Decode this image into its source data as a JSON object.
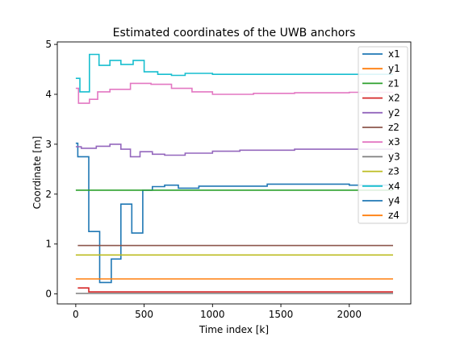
{
  "chart_data": {
    "type": "line",
    "title": "Estimated coordinates of the UWB anchors",
    "xlabel": "Time index [k]",
    "ylabel": "Coordinate [m]",
    "xlim": [
      -135,
      2450
    ],
    "ylim": [
      -0.2,
      5.05
    ],
    "xticks": [
      0,
      500,
      1000,
      1500,
      2000
    ],
    "yticks": [
      0,
      1,
      2,
      3,
      4,
      5
    ],
    "grid": false,
    "legend_position": "top-right",
    "series": [
      {
        "name": "x1",
        "color": "#1f77b4",
        "step": true,
        "x": [
          0,
          15,
          95,
          175,
          260,
          330,
          410,
          490,
          560,
          650,
          750,
          900,
          1400,
          1700,
          2000,
          2320
        ],
        "y": [
          3.02,
          2.75,
          1.25,
          0.23,
          0.7,
          1.8,
          1.22,
          2.08,
          2.15,
          2.18,
          2.12,
          2.16,
          2.2,
          2.2,
          2.18,
          2.18
        ]
      },
      {
        "name": "y1",
        "color": "#ff7f0e",
        "step": true,
        "x": [
          0,
          2320
        ],
        "y": [
          0.3,
          0.3
        ]
      },
      {
        "name": "z1",
        "color": "#2ca02c",
        "step": true,
        "x": [
          0,
          2320
        ],
        "y": [
          2.08,
          2.08
        ]
      },
      {
        "name": "x2",
        "color": "#d62728",
        "step": true,
        "x": [
          15,
          95,
          2320
        ],
        "y": [
          0.12,
          0.04,
          0.04
        ]
      },
      {
        "name": "y2",
        "color": "#9467bd",
        "step": true,
        "x": [
          0,
          40,
          150,
          250,
          330,
          400,
          470,
          560,
          650,
          800,
          1000,
          1200,
          1600,
          2000,
          2320
        ],
        "y": [
          2.95,
          2.92,
          2.96,
          3.0,
          2.9,
          2.75,
          2.85,
          2.8,
          2.78,
          2.82,
          2.86,
          2.88,
          2.9,
          2.9,
          2.9
        ]
      },
      {
        "name": "z2",
        "color": "#8c564b",
        "step": true,
        "x": [
          15,
          2320
        ],
        "y": [
          0.97,
          0.97
        ]
      },
      {
        "name": "x3",
        "color": "#e377c2",
        "step": true,
        "x": [
          0,
          20,
          100,
          160,
          250,
          400,
          550,
          700,
          850,
          1000,
          1300,
          1600,
          2000,
          2320
        ],
        "y": [
          4.12,
          3.82,
          3.9,
          4.05,
          4.1,
          4.22,
          4.2,
          4.12,
          4.05,
          4.0,
          4.02,
          4.03,
          4.04,
          4.04
        ]
      },
      {
        "name": "y3",
        "color": "#7f7f7f",
        "step": true,
        "x": [
          0,
          2320
        ],
        "y": [
          0.01,
          0.01
        ]
      },
      {
        "name": "z3",
        "color": "#bcbd22",
        "step": true,
        "x": [
          0,
          2320
        ],
        "y": [
          0.78,
          0.78
        ]
      },
      {
        "name": "x4",
        "color": "#17becf",
        "step": true,
        "x": [
          0,
          30,
          100,
          170,
          250,
          330,
          420,
          500,
          600,
          700,
          800,
          1000,
          2320
        ],
        "y": [
          4.32,
          4.05,
          4.8,
          4.58,
          4.68,
          4.6,
          4.68,
          4.45,
          4.4,
          4.38,
          4.42,
          4.4,
          4.4
        ]
      },
      {
        "name": "y4",
        "color": "#1f77b4",
        "step": true,
        "x": [],
        "y": []
      },
      {
        "name": "z4",
        "color": "#ff7f0e",
        "step": true,
        "x": [],
        "y": []
      }
    ]
  }
}
